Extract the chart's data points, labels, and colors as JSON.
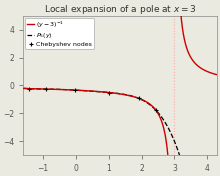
{
  "title": "Local expansion of a pole at $x = 3$",
  "legend_labels": [
    "$(y - 3)^{-1}$",
    "$P_5(y)$",
    "Chebyshev nodes"
  ],
  "pole": 3.0,
  "cheb_order": 5,
  "interp_a": -1.5,
  "interp_b": 2.5,
  "xlim": [
    -1.6,
    4.3
  ],
  "ylim": [
    -5.0,
    5.0
  ],
  "pole_color": "#cc0000",
  "poly_color": "black",
  "node_color": "black",
  "vline_color": "#ffaaaa",
  "background_color": "#eaeae0",
  "figsize": [
    2.2,
    1.76
  ],
  "dpi": 100
}
